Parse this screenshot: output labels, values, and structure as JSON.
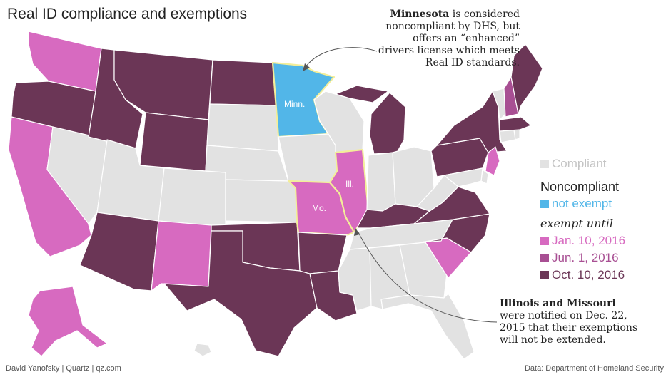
{
  "title": "Real ID compliance and exemptions",
  "colors": {
    "compliant": "#e2e2e2",
    "not_exempt": "#52b6e8",
    "jan_2016": "#d76ac0",
    "jun_2016": "#a84f93",
    "oct_2016": "#6b3656",
    "highlight_border": "#f3ee9a"
  },
  "labels": {
    "minn": "Minn.",
    "ill": "Ill.",
    "mo": "Mo."
  },
  "callouts": {
    "minnesota": {
      "bold": "Minnesota",
      "rest": " is considered noncompliant by DHS, but offers an “enhanced” drivers license which meets Real ID standards."
    },
    "illinois_missouri": {
      "bold": "Illinois and Missouri",
      "rest": " were notified on Dec. 22, 2015 that their exemptions will not be extended."
    }
  },
  "legend": {
    "compliant": "Compliant",
    "noncompliant": "Noncompliant",
    "not_exempt": "not exempt",
    "exempt_until": "exempt until",
    "jan": "Jan. 10, 2016",
    "jun": "Jun. 1, 2016",
    "oct": "Oct. 10, 2016"
  },
  "footer": {
    "left": "David Yanofsky | Quartz | qz.com",
    "right": "Data: Department of Homeland Security"
  },
  "states": [
    {
      "id": "WA",
      "status": "jan"
    },
    {
      "id": "OR",
      "status": "oct"
    },
    {
      "id": "CA",
      "status": "jan"
    },
    {
      "id": "NV",
      "status": "compliant"
    },
    {
      "id": "ID",
      "status": "oct"
    },
    {
      "id": "MT",
      "status": "oct"
    },
    {
      "id": "WY",
      "status": "oct"
    },
    {
      "id": "UT",
      "status": "compliant"
    },
    {
      "id": "AZ",
      "status": "oct"
    },
    {
      "id": "CO",
      "status": "compliant"
    },
    {
      "id": "NM",
      "status": "jan"
    },
    {
      "id": "ND",
      "status": "oct"
    },
    {
      "id": "SD",
      "status": "compliant"
    },
    {
      "id": "NE",
      "status": "compliant"
    },
    {
      "id": "KS",
      "status": "compliant"
    },
    {
      "id": "OK",
      "status": "oct"
    },
    {
      "id": "TX",
      "status": "oct"
    },
    {
      "id": "MN",
      "status": "not_exempt"
    },
    {
      "id": "IA",
      "status": "compliant"
    },
    {
      "id": "MO",
      "status": "jan"
    },
    {
      "id": "AR",
      "status": "oct"
    },
    {
      "id": "LA",
      "status": "oct"
    },
    {
      "id": "WI",
      "status": "compliant"
    },
    {
      "id": "IL",
      "status": "jan"
    },
    {
      "id": "MI",
      "status": "oct"
    },
    {
      "id": "IN",
      "status": "compliant"
    },
    {
      "id": "OH",
      "status": "compliant"
    },
    {
      "id": "KY",
      "status": "oct"
    },
    {
      "id": "TN",
      "status": "compliant"
    },
    {
      "id": "MS",
      "status": "compliant"
    },
    {
      "id": "AL",
      "status": "compliant"
    },
    {
      "id": "GA",
      "status": "compliant"
    },
    {
      "id": "FL",
      "status": "compliant"
    },
    {
      "id": "SC",
      "status": "jan"
    },
    {
      "id": "NC",
      "status": "oct"
    },
    {
      "id": "VA",
      "status": "oct"
    },
    {
      "id": "WV",
      "status": "compliant"
    },
    {
      "id": "PA",
      "status": "oct"
    },
    {
      "id": "NY",
      "status": "oct"
    },
    {
      "id": "NJ",
      "status": "jan"
    },
    {
      "id": "DE",
      "status": "compliant"
    },
    {
      "id": "MD",
      "status": "compliant"
    },
    {
      "id": "CT",
      "status": "compliant"
    },
    {
      "id": "RI",
      "status": "compliant"
    },
    {
      "id": "MA",
      "status": "oct"
    },
    {
      "id": "VT",
      "status": "compliant"
    },
    {
      "id": "NH",
      "status": "jun"
    },
    {
      "id": "ME",
      "status": "oct"
    },
    {
      "id": "AK",
      "status": "jan"
    },
    {
      "id": "HI",
      "status": "compliant"
    }
  ]
}
